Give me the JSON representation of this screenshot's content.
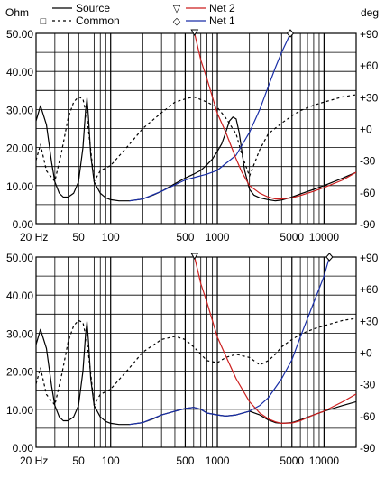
{
  "colors": {
    "source": "#000000",
    "common": "#000000",
    "net1": "#1a2fa8",
    "net2": "#cc1f1f"
  },
  "chart_data": [
    {
      "type": "line",
      "y_left_label": "Ohm",
      "y_right_label": "deg",
      "x_scale": "log",
      "xlim": [
        20,
        20000
      ],
      "ylim": [
        0,
        50
      ],
      "ylim_right": [
        -90,
        90
      ],
      "x_ticks": [
        20,
        50,
        100,
        500,
        1000,
        5000,
        10000
      ],
      "x_tick_labels": [
        "20 Hz",
        "50",
        "100",
        "500",
        "1000",
        "5000",
        "10000"
      ],
      "y_ticks": [
        0,
        10,
        20,
        30,
        40,
        50
      ],
      "y_tick_labels": [
        "0.00",
        "10.00",
        "20.00",
        "30.00",
        "40.00",
        "50.00"
      ],
      "y_right_ticks": [
        -90,
        -60,
        -30,
        0,
        30,
        60,
        90
      ],
      "y_right_tick_labels": [
        "-90",
        "-60",
        "-30",
        "+0",
        "+30",
        "+60",
        "+90"
      ],
      "legend": [
        {
          "name": "Source",
          "marker": "",
          "x_pos": 0
        },
        {
          "name": "Net 2",
          "marker": "▽",
          "x_pos": 1
        },
        {
          "name": "Common",
          "marker": "□",
          "x_pos": 2
        },
        {
          "name": "Net 1",
          "marker": "◇",
          "x_pos": 3
        }
      ],
      "series": [
        {
          "name": "Source",
          "style": "solid",
          "color_key": "source",
          "axis": "left",
          "x": [
            20,
            22,
            25,
            28,
            30,
            33,
            36,
            40,
            45,
            50,
            55,
            58,
            60,
            62,
            65,
            70,
            80,
            90,
            100,
            120,
            150,
            200,
            250,
            300,
            400,
            500,
            600,
            700,
            800,
            900,
            1000,
            1100,
            1200,
            1300,
            1400,
            1500,
            1600,
            1700,
            1800,
            2000,
            2200,
            2500,
            3000,
            3500,
            4000,
            5000,
            6000,
            8000,
            10000,
            15000,
            20000
          ],
          "y": [
            27,
            31,
            26,
            16,
            11,
            8,
            7,
            7,
            8,
            11,
            20,
            29,
            33,
            28,
            18,
            11,
            8,
            6.8,
            6.3,
            6,
            6,
            6.5,
            7.5,
            8.5,
            10.5,
            12,
            13,
            14,
            15.5,
            17,
            19,
            21,
            24,
            27,
            28,
            27.5,
            24,
            19,
            14,
            9,
            7.5,
            6.8,
            6.3,
            6,
            6.2,
            7,
            7.8,
            9,
            10,
            12,
            13.5
          ]
        },
        {
          "name": "Common",
          "style": "dashed",
          "color_key": "common",
          "axis": "right",
          "x": [
            20,
            22,
            25,
            30,
            35,
            40,
            45,
            50,
            55,
            60,
            65,
            70,
            80,
            100,
            150,
            200,
            300,
            400,
            500,
            600,
            800,
            1000,
            1200,
            1500,
            1700,
            2000,
            2500,
            3000,
            4000,
            5000,
            6000,
            8000,
            10000,
            15000,
            20000
          ],
          "y": [
            -30,
            -15,
            -40,
            -50,
            -20,
            10,
            25,
            30,
            28,
            10,
            -20,
            -50,
            -40,
            -35,
            -15,
            0,
            15,
            25,
            28,
            30,
            25,
            20,
            10,
            -5,
            -25,
            -45,
            -20,
            -5,
            5,
            12,
            17,
            22,
            25,
            30,
            32
          ]
        },
        {
          "name": "Net 1",
          "style": "solid",
          "color_key": "net1",
          "axis": "left",
          "x": [
            150,
            200,
            300,
            500,
            800,
            1000,
            1500,
            2000,
            2500,
            3000,
            3500,
            4000,
            4500,
            5000
          ],
          "y": [
            6,
            6.5,
            8.5,
            11.5,
            13,
            14,
            18,
            24,
            30,
            36,
            41,
            45,
            48,
            51
          ]
        },
        {
          "name": "Net 2",
          "style": "solid",
          "color_key": "net2",
          "axis": "left",
          "x": [
            600,
            700,
            800,
            1000,
            1200,
            1500,
            1700,
            2000,
            2500,
            3000,
            3500,
            4000,
            5000,
            6000,
            8000,
            10000,
            15000,
            20000
          ],
          "y": [
            51,
            43,
            38,
            29,
            24,
            17,
            13.5,
            10,
            8,
            7,
            6.5,
            6.5,
            6.8,
            7.4,
            8.5,
            9.5,
            11.5,
            13.5
          ]
        }
      ]
    },
    {
      "type": "line",
      "y_left_label": "",
      "y_right_label": "",
      "x_scale": "log",
      "xlim": [
        20,
        20000
      ],
      "ylim": [
        0,
        50
      ],
      "ylim_right": [
        -90,
        90
      ],
      "x_ticks": [
        20,
        50,
        100,
        500,
        1000,
        5000,
        10000
      ],
      "x_tick_labels": [
        "20 Hz",
        "50",
        "100",
        "500",
        "1000",
        "5000",
        "10000"
      ],
      "y_ticks": [
        0,
        10,
        20,
        30,
        40,
        50
      ],
      "y_tick_labels": [
        "0.00",
        "10.00",
        "20.00",
        "30.00",
        "40.00",
        "50.00"
      ],
      "y_right_ticks": [
        -90,
        -60,
        -30,
        0,
        30,
        60,
        90
      ],
      "y_right_tick_labels": [
        "-90",
        "-60",
        "-30",
        "+0",
        "+30",
        "+60",
        "+90"
      ],
      "series": [
        {
          "name": "Source",
          "style": "solid",
          "color_key": "source",
          "axis": "left",
          "x": [
            20,
            22,
            25,
            28,
            30,
            33,
            36,
            40,
            45,
            50,
            55,
            58,
            60,
            62,
            65,
            70,
            80,
            90,
            100,
            120,
            150,
            200,
            250,
            300,
            400,
            500,
            600,
            700,
            800,
            1000,
            1200,
            1500,
            2000,
            2500,
            3000,
            3500,
            4000,
            5000,
            6000,
            8000,
            10000,
            15000,
            20000
          ],
          "y": [
            27,
            31,
            26,
            16,
            11,
            8,
            7,
            7,
            8,
            11,
            20,
            29,
            33,
            28,
            18,
            11,
            8,
            6.8,
            6.3,
            6,
            6,
            6.5,
            7.5,
            8.5,
            9.5,
            10.2,
            10.5,
            10,
            9,
            8.5,
            8.2,
            8.5,
            9.5,
            8.5,
            7.2,
            6.5,
            6.3,
            6.5,
            7.2,
            8.5,
            9.5,
            11,
            12
          ]
        },
        {
          "name": "Common",
          "style": "dashed",
          "color_key": "common",
          "axis": "right",
          "x": [
            20,
            22,
            25,
            30,
            35,
            40,
            45,
            50,
            55,
            60,
            65,
            70,
            80,
            100,
            150,
            200,
            300,
            400,
            500,
            600,
            700,
            800,
            1000,
            1200,
            1500,
            2000,
            2500,
            3000,
            3500,
            4000,
            5000,
            6000,
            8000,
            10000,
            15000,
            20000
          ],
          "y": [
            -30,
            -15,
            -40,
            -50,
            -20,
            10,
            25,
            30,
            28,
            10,
            -20,
            -50,
            -40,
            -35,
            -15,
            0,
            12,
            15,
            12,
            5,
            -2,
            -8,
            -10,
            -5,
            -2,
            -5,
            -12,
            -8,
            -2,
            5,
            12,
            17,
            22,
            25,
            30,
            32
          ]
        },
        {
          "name": "Net 1",
          "style": "solid",
          "color_key": "net1",
          "axis": "left",
          "x": [
            150,
            200,
            300,
            400,
            500,
            600,
            700,
            800,
            1000,
            1200,
            1500,
            2000,
            2500,
            3000,
            4000,
            5000,
            6000,
            8000,
            10000,
            11500
          ],
          "y": [
            6,
            6.5,
            8.5,
            9.5,
            10.2,
            10.5,
            10,
            9,
            8.5,
            8.2,
            8.5,
            9.5,
            11,
            13,
            18,
            23,
            29,
            38,
            45,
            51
          ]
        },
        {
          "name": "Net 2",
          "style": "solid",
          "color_key": "net2",
          "axis": "left",
          "x": [
            600,
            700,
            800,
            1000,
            1200,
            1500,
            2000,
            2500,
            3000,
            3500,
            4000,
            5000,
            6000,
            8000,
            10000,
            15000,
            20000
          ],
          "y": [
            51,
            43,
            38,
            29,
            24,
            18,
            12,
            9,
            7.5,
            6.7,
            6.3,
            6.4,
            7,
            8.5,
            9.5,
            12,
            14
          ]
        }
      ]
    }
  ]
}
